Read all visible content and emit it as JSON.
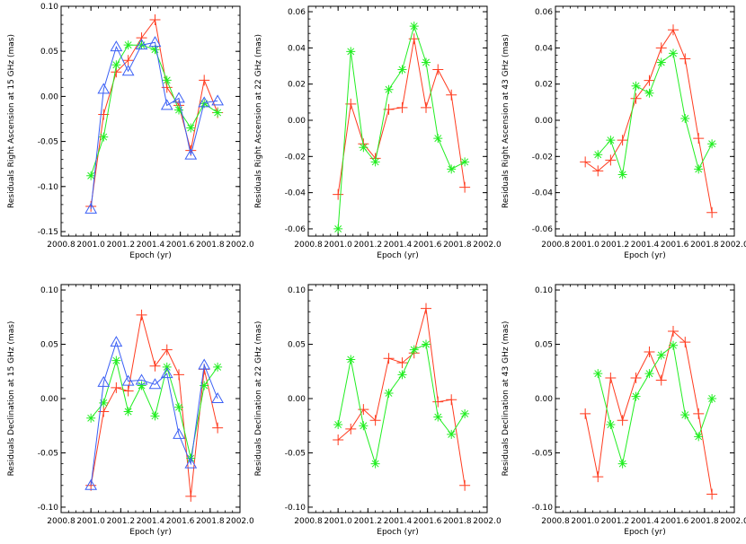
{
  "chart_data": [
    {
      "type": "line",
      "xlabel": "Epoch (yr)",
      "ylabel": "Residuals Right Ascension at 15 GHz (mas)",
      "xlim": [
        2000.8,
        2002.0
      ],
      "ylim": [
        -0.155,
        0.1
      ],
      "xticks": [
        2000.8,
        2001.0,
        2001.2,
        2001.4,
        2001.6,
        2001.8,
        2002.0
      ],
      "xtick_labels": [
        "2000.8",
        "2001.0",
        "2001.2",
        "2001.4",
        "2001.6",
        "2001.8",
        "2002.0"
      ],
      "yticks": [
        -0.15,
        -0.1,
        -0.05,
        0.0,
        0.05,
        0.1
      ],
      "ytick_labels": [
        "-0.15",
        "-0.10",
        "-0.05",
        "0.00",
        "0.05",
        "0.10"
      ],
      "series": [
        {
          "color": "#ff3b1f",
          "marker": "plus",
          "x": [
            2001.0,
            2001.085,
            2001.17,
            2001.25,
            2001.34,
            2001.43,
            2001.51,
            2001.59,
            2001.67,
            2001.76,
            2001.85
          ],
          "y": [
            -0.122,
            -0.02,
            0.027,
            0.04,
            0.065,
            0.085,
            0.01,
            -0.01,
            -0.06,
            0.018,
            -0.018
          ]
        },
        {
          "color": "#22ee22",
          "marker": "asterisk",
          "x": [
            2001.0,
            2001.085,
            2001.17,
            2001.25,
            2001.34,
            2001.43,
            2001.51,
            2001.59,
            2001.67,
            2001.76,
            2001.85
          ],
          "y": [
            -0.088,
            -0.045,
            0.035,
            0.057,
            0.057,
            0.052,
            0.018,
            -0.015,
            -0.035,
            -0.008,
            -0.018
          ]
        },
        {
          "color": "#3a5ff5",
          "marker": "triangle",
          "x": [
            2001.0,
            2001.085,
            2001.17,
            2001.25,
            2001.34,
            2001.43,
            2001.51,
            2001.59,
            2001.67,
            2001.76,
            2001.85
          ],
          "y": [
            -0.125,
            0.008,
            0.055,
            0.028,
            0.057,
            0.06,
            -0.01,
            -0.002,
            -0.065,
            -0.007,
            -0.005
          ]
        }
      ]
    },
    {
      "type": "line",
      "xlabel": "Epoch (yr)",
      "ylabel": "Residuals Right Ascension at 22 GHz (mas)",
      "xlim": [
        2000.8,
        2002.0
      ],
      "ylim": [
        -0.064,
        0.063
      ],
      "xticks": [
        2000.8,
        2001.0,
        2001.2,
        2001.4,
        2001.6,
        2001.8,
        2002.0
      ],
      "xtick_labels": [
        "2000.8",
        "2001.0",
        "2001.2",
        "2001.4",
        "2001.6",
        "2001.8",
        "2002.0"
      ],
      "yticks": [
        -0.06,
        -0.04,
        -0.02,
        0.0,
        0.02,
        0.04,
        0.06
      ],
      "ytick_labels": [
        "-0.06",
        "-0.04",
        "-0.02",
        "0.00",
        "0.02",
        "0.04",
        "0.06"
      ],
      "series": [
        {
          "color": "#ff3b1f",
          "marker": "plus",
          "x": [
            2001.0,
            2001.085,
            2001.17,
            2001.25,
            2001.34,
            2001.43,
            2001.51,
            2001.59,
            2001.67,
            2001.76,
            2001.85
          ],
          "y": [
            -0.041,
            0.009,
            -0.013,
            -0.021,
            0.006,
            0.007,
            0.045,
            0.007,
            0.028,
            0.014,
            -0.037
          ]
        },
        {
          "color": "#22ee22",
          "marker": "asterisk",
          "x": [
            2001.0,
            2001.085,
            2001.17,
            2001.25,
            2001.34,
            2001.43,
            2001.51,
            2001.59,
            2001.67,
            2001.76,
            2001.85
          ],
          "y": [
            -0.06,
            0.038,
            -0.015,
            -0.023,
            0.017,
            0.028,
            0.052,
            0.032,
            -0.01,
            -0.027,
            -0.023
          ]
        }
      ]
    },
    {
      "type": "line",
      "xlabel": "Epoch (yr)",
      "ylabel": "Residuals Right Ascension at 43 GHz (mas)",
      "xlim": [
        2000.8,
        2002.0
      ],
      "ylim": [
        -0.064,
        0.063
      ],
      "xticks": [
        2000.8,
        2001.0,
        2001.2,
        2001.4,
        2001.6,
        2001.8,
        2002.0
      ],
      "xtick_labels": [
        "2000.8",
        "2001.0",
        "2001.2",
        "2001.4",
        "2001.6",
        "2001.8",
        "2002.0"
      ],
      "yticks": [
        -0.06,
        -0.04,
        -0.02,
        0.0,
        0.02,
        0.04,
        0.06
      ],
      "ytick_labels": [
        "-0.06",
        "-0.04",
        "-0.02",
        "0.00",
        "0.02",
        "0.04",
        "0.06"
      ],
      "series": [
        {
          "color": "#ff3b1f",
          "marker": "plus",
          "x": [
            2001.0,
            2001.085,
            2001.17,
            2001.25,
            2001.34,
            2001.43,
            2001.51,
            2001.59,
            2001.67,
            2001.76,
            2001.85
          ],
          "y": [
            -0.023,
            -0.028,
            -0.022,
            -0.011,
            0.012,
            0.022,
            0.04,
            0.05,
            0.034,
            -0.01,
            -0.051
          ]
        },
        {
          "color": "#22ee22",
          "marker": "asterisk",
          "x": [
            2001.085,
            2001.17,
            2001.25,
            2001.34,
            2001.43,
            2001.51,
            2001.59,
            2001.67,
            2001.76,
            2001.85
          ],
          "y": [
            -0.019,
            -0.011,
            -0.03,
            0.019,
            0.015,
            0.032,
            0.037,
            0.001,
            -0.027,
            -0.013
          ]
        }
      ]
    },
    {
      "type": "line",
      "xlabel": "Epoch (yr)",
      "ylabel": "Residuals Declination at 15 GHz (mas)",
      "xlim": [
        2000.8,
        2002.0
      ],
      "ylim": [
        -0.105,
        0.105
      ],
      "xticks": [
        2000.8,
        2001.0,
        2001.2,
        2001.4,
        2001.6,
        2001.8,
        2002.0
      ],
      "xtick_labels": [
        "2000.8",
        "2001.0",
        "2001.2",
        "2001.4",
        "2001.6",
        "2001.8",
        "2002.0"
      ],
      "yticks": [
        -0.1,
        -0.05,
        0.0,
        0.05,
        0.1
      ],
      "ytick_labels": [
        "-0.10",
        "-0.05",
        "0.00",
        "0.05",
        "0.10"
      ],
      "series": [
        {
          "color": "#ff3b1f",
          "marker": "plus",
          "x": [
            2001.0,
            2001.085,
            2001.17,
            2001.25,
            2001.34,
            2001.43,
            2001.51,
            2001.59,
            2001.67,
            2001.76,
            2001.85
          ],
          "y": [
            -0.08,
            -0.012,
            0.01,
            0.007,
            0.077,
            0.03,
            0.045,
            0.022,
            -0.09,
            0.027,
            -0.027
          ]
        },
        {
          "color": "#22ee22",
          "marker": "asterisk",
          "x": [
            2001.0,
            2001.085,
            2001.17,
            2001.25,
            2001.34,
            2001.43,
            2001.51,
            2001.59,
            2001.67,
            2001.76,
            2001.85
          ],
          "y": [
            -0.018,
            -0.004,
            0.035,
            -0.012,
            0.012,
            -0.016,
            0.029,
            -0.008,
            -0.055,
            0.012,
            0.029
          ]
        },
        {
          "color": "#3a5ff5",
          "marker": "triangle",
          "x": [
            2001.0,
            2001.085,
            2001.17,
            2001.25,
            2001.34,
            2001.43,
            2001.51,
            2001.59,
            2001.67,
            2001.76,
            2001.85
          ],
          "y": [
            -0.08,
            0.015,
            0.052,
            0.016,
            0.017,
            0.013,
            0.023,
            -0.033,
            -0.06,
            0.031,
            0.0
          ]
        }
      ]
    },
    {
      "type": "line",
      "xlabel": "Epoch (yr)",
      "ylabel": "Residuals Declination at 22 GHz (mas)",
      "xlim": [
        2000.8,
        2002.0
      ],
      "ylim": [
        -0.105,
        0.105
      ],
      "xticks": [
        2000.8,
        2001.0,
        2001.2,
        2001.4,
        2001.6,
        2001.8,
        2002.0
      ],
      "xtick_labels": [
        "2000.8",
        "2001.0",
        "2001.2",
        "2001.4",
        "2001.6",
        "2001.8",
        "2002.0"
      ],
      "yticks": [
        -0.1,
        -0.05,
        0.0,
        0.05,
        0.1
      ],
      "ytick_labels": [
        "-0.10",
        "-0.05",
        "0.00",
        "0.05",
        "0.10"
      ],
      "series": [
        {
          "color": "#ff3b1f",
          "marker": "plus",
          "x": [
            2001.0,
            2001.085,
            2001.17,
            2001.25,
            2001.34,
            2001.43,
            2001.51,
            2001.59,
            2001.67,
            2001.76,
            2001.85
          ],
          "y": [
            -0.038,
            -0.028,
            -0.01,
            -0.02,
            0.037,
            0.033,
            0.042,
            0.083,
            -0.003,
            -0.001,
            -0.08
          ]
        },
        {
          "color": "#22ee22",
          "marker": "asterisk",
          "x": [
            2001.0,
            2001.085,
            2001.17,
            2001.25,
            2001.34,
            2001.43,
            2001.51,
            2001.59,
            2001.67,
            2001.76,
            2001.85
          ],
          "y": [
            -0.024,
            0.036,
            -0.025,
            -0.06,
            0.005,
            0.022,
            0.045,
            0.05,
            -0.017,
            -0.033,
            -0.014
          ]
        }
      ]
    },
    {
      "type": "line",
      "xlabel": "Epoch (yr)",
      "ylabel": "Residuals Declination at 43 GHz (mas)",
      "xlim": [
        2000.8,
        2002.0
      ],
      "ylim": [
        -0.105,
        0.105
      ],
      "xticks": [
        2000.8,
        2001.0,
        2001.2,
        2001.4,
        2001.6,
        2001.8,
        2002.0
      ],
      "xtick_labels": [
        "2000.8",
        "2001.0",
        "2001.2",
        "2001.4",
        "2001.6",
        "2001.8",
        "2002.0"
      ],
      "yticks": [
        -0.1,
        -0.05,
        0.0,
        0.05,
        0.1
      ],
      "ytick_labels": [
        "-0.10",
        "-0.05",
        "0.00",
        "0.05",
        "0.10"
      ],
      "series": [
        {
          "color": "#ff3b1f",
          "marker": "plus",
          "x": [
            2001.0,
            2001.085,
            2001.17,
            2001.25,
            2001.34,
            2001.43,
            2001.51,
            2001.59,
            2001.67,
            2001.76,
            2001.85
          ],
          "y": [
            -0.014,
            -0.072,
            0.019,
            -0.02,
            0.019,
            0.043,
            0.017,
            0.062,
            0.052,
            -0.014,
            -0.088
          ]
        },
        {
          "color": "#22ee22",
          "marker": "asterisk",
          "x": [
            2001.085,
            2001.17,
            2001.25,
            2001.34,
            2001.43,
            2001.51,
            2001.59,
            2001.67,
            2001.76,
            2001.85
          ],
          "y": [
            0.023,
            -0.024,
            -0.06,
            0.002,
            0.023,
            0.04,
            0.049,
            -0.015,
            -0.035,
            0.0
          ]
        }
      ]
    }
  ]
}
